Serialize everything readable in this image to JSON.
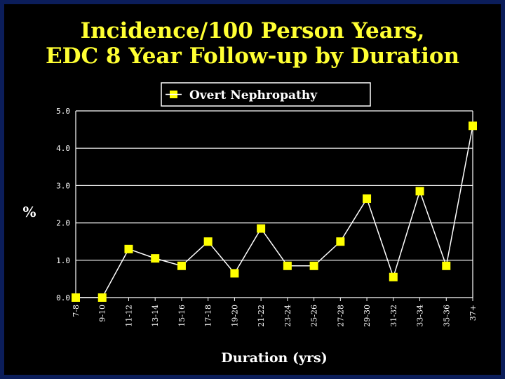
{
  "title_line1": "Incidence/100 Person Years,",
  "title_line2": "EDC 8 Year Follow-up by Duration",
  "chart_data": {
    "type": "line",
    "categories": [
      "7-8",
      "9-10",
      "11-12",
      "13-14",
      "15-16",
      "17-18",
      "19-20",
      "21-22",
      "23-24",
      "25-26",
      "27-28",
      "29-30",
      "31-32",
      "33-34",
      "35-36",
      "37+"
    ],
    "series": [
      {
        "name": "Overt Nephropathy",
        "values": [
          0.0,
          0.0,
          1.3,
          1.05,
          0.85,
          1.5,
          0.65,
          1.85,
          0.85,
          0.85,
          1.5,
          2.65,
          0.55,
          2.85,
          0.85,
          4.6
        ]
      }
    ],
    "ylabel": "%",
    "xlabel": "Duration (yrs)",
    "ylim": [
      0,
      5
    ],
    "yticks": [
      "0.0",
      "1.0",
      "2.0",
      "3.0",
      "4.0",
      "5.0"
    ],
    "grid": true,
    "legend_position": "top",
    "colors": {
      "background": "#000000",
      "border": "#0b1d5a",
      "title": "#ffff33",
      "marker": "#ffff00",
      "line": "#ffffff",
      "text": "#ffffff"
    }
  }
}
